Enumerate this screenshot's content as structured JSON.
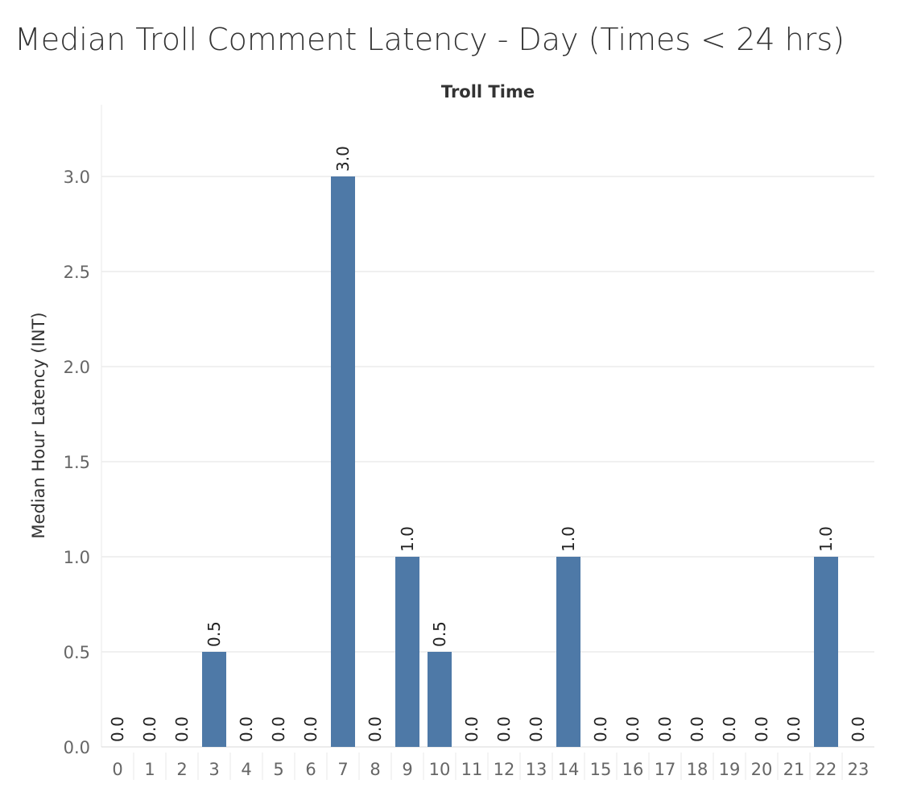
{
  "chart_data": {
    "type": "bar",
    "title": "Median Troll Comment Latency - Day (Times < 24 hrs)",
    "column_header": "Troll Time",
    "ylabel": "Median Hour Latency (INT)",
    "xlabel": "",
    "ylim": [
      0,
      3.25
    ],
    "yticks": [
      "0.0",
      "0.5",
      "1.0",
      "1.5",
      "2.0",
      "2.5",
      "3.0"
    ],
    "grid": true,
    "bar_color": "#4e79a7",
    "categories": [
      "0",
      "1",
      "2",
      "3",
      "4",
      "5",
      "6",
      "7",
      "8",
      "9",
      "10",
      "11",
      "12",
      "13",
      "14",
      "15",
      "16",
      "17",
      "18",
      "19",
      "20",
      "21",
      "22",
      "23"
    ],
    "values": [
      0,
      0,
      0,
      0.5,
      0,
      0,
      0,
      3.0,
      0,
      1.0,
      0.5,
      0,
      0,
      0,
      1.0,
      0,
      0,
      0,
      0,
      0,
      0,
      0,
      1.0,
      0
    ],
    "data_labels": [
      "0.0",
      "0.0",
      "0.0",
      "0.5",
      "0.0",
      "0.0",
      "0.0",
      "3.0",
      "0.0",
      "1.0",
      "0.5",
      "0.0",
      "0.0",
      "0.0",
      "1.0",
      "0.0",
      "0.0",
      "0.0",
      "0.0",
      "0.0",
      "0.0",
      "0.0",
      "1.0",
      "0.0"
    ]
  }
}
